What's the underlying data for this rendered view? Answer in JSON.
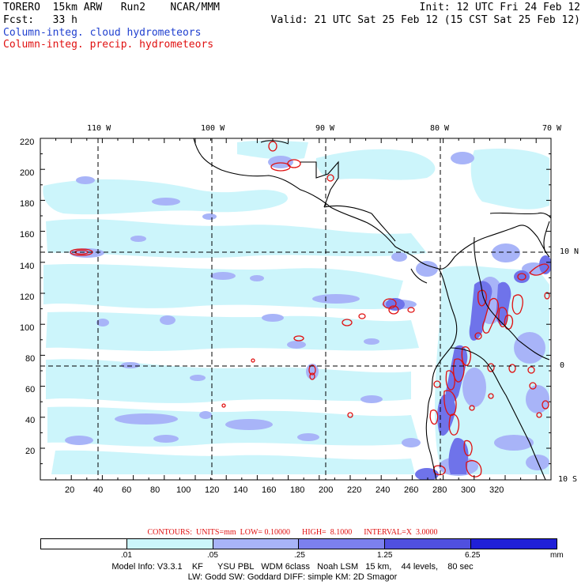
{
  "header": {
    "model": "TORERO",
    "resolution": "15km ARW",
    "run": "Run2",
    "org": "NCAR/MMM",
    "init": "Init: 12 UTC Fri 24 Feb 12",
    "fcst_label": "Fcst:",
    "fcst_value": "33 h",
    "valid": "Valid: 21 UTC Sat 25 Feb 12 (15 CST Sat 25 Feb 12)",
    "legend_cloud": "Column-integ. cloud hydrometeors",
    "legend_precip": "Column-integ. precip. hydrometeors"
  },
  "map": {
    "lon_labels": [
      "110 W",
      "100 W",
      "90 W",
      "80 W",
      "70 W"
    ],
    "lat_labels": [
      "10 N",
      "0",
      "10 S"
    ],
    "y_ticks": [
      "220",
      "200",
      "180",
      "160",
      "140",
      "120",
      "100",
      "80",
      "60",
      "40",
      "20"
    ],
    "x_ticks": [
      "20",
      "40",
      "60",
      "80",
      "100",
      "120",
      "140",
      "160",
      "180",
      "200",
      "220",
      "240",
      "260",
      "280",
      "300",
      "320"
    ],
    "colors": {
      "light": "#ccf5fb",
      "mid_light": "#a8b4f8",
      "mid": "#7c80ee",
      "dark": "#4e4ed8",
      "contour": "#e01010",
      "coast": "#000000"
    }
  },
  "contours_line": "CONTOURS:  UNITS=mm  LOW= 0.10000      HIGH=  8.1000      INTERVAL=X  3.0000",
  "colorbar": {
    "labels": [
      ".01",
      ".05",
      ".25",
      "1.25",
      "6.25"
    ],
    "unit": "mm",
    "colors": [
      "#ffffff",
      "#ccf5fb",
      "#a8b4f8",
      "#7c80ee",
      "#5050e0",
      "#2020d8"
    ]
  },
  "model_info_1": "Model Info: V3.3.1    KF      YSU PBL   WDM 6class   Noah LSM   15 km,    44 levels,    80 sec",
  "model_info_2": "LW: Godd SW: Goddard DIFF: simple KM: 2D Smagor"
}
